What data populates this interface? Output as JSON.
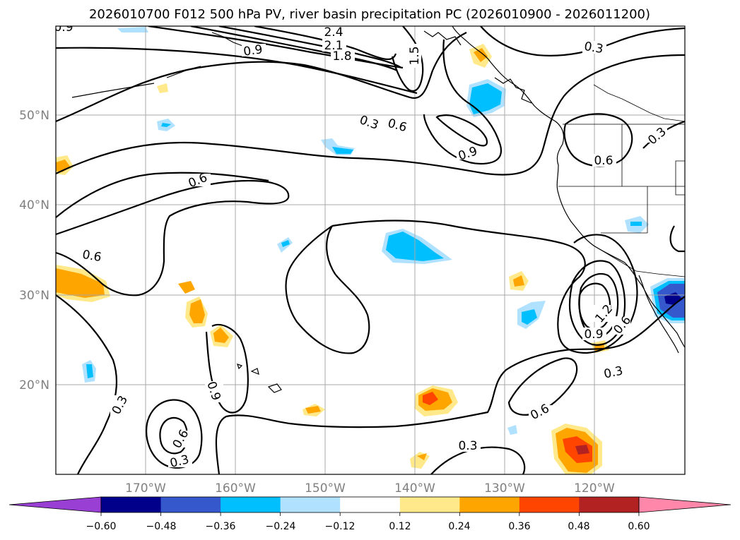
{
  "title": "2026010700 F012 500 hPa PV, river basin precipitation PC (2026010900 - 2026011200)",
  "map": {
    "lat_labels": [
      "50°N",
      "40°N",
      "30°N",
      "20°N"
    ],
    "lon_labels": [
      "170°W",
      "160°W",
      "150°W",
      "140°W",
      "130°W",
      "120°W"
    ],
    "contour_labels": [
      "0.9",
      "2.4",
      "2.1",
      "1.8",
      "1.5",
      "0.9",
      "0.3",
      "0.3",
      "0.6",
      "0.9",
      "0.3",
      "0.6",
      "0.6",
      "0.6",
      "1.2",
      "0.9",
      "0.6",
      "0.3",
      "0.6",
      "0.3",
      "0.3",
      "0.9",
      "0.6",
      "0.3"
    ]
  },
  "colorbar": {
    "tick_labels": [
      "−0.60",
      "−0.48",
      "−0.36",
      "−0.24",
      "−0.12",
      "0.12",
      "0.24",
      "0.36",
      "0.48",
      "0.60"
    ],
    "colors": [
      "#9a3fd4",
      "#00008b",
      "#3558cc",
      "#00bfff",
      "#b0e2ff",
      "#ffffff",
      "#ffe98a",
      "#ffa500",
      "#ff4500",
      "#b22222",
      "#ff88aa"
    ]
  },
  "anomaly_colors": {
    "pos_light": "#ffe98a",
    "pos_mid": "#ffa500",
    "pos_strong": "#ff4500",
    "pos_max": "#b22222",
    "neg_light": "#b0e2ff",
    "neg_mid": "#00bfff",
    "neg_strong": "#3558cc",
    "neg_max": "#00008b"
  }
}
